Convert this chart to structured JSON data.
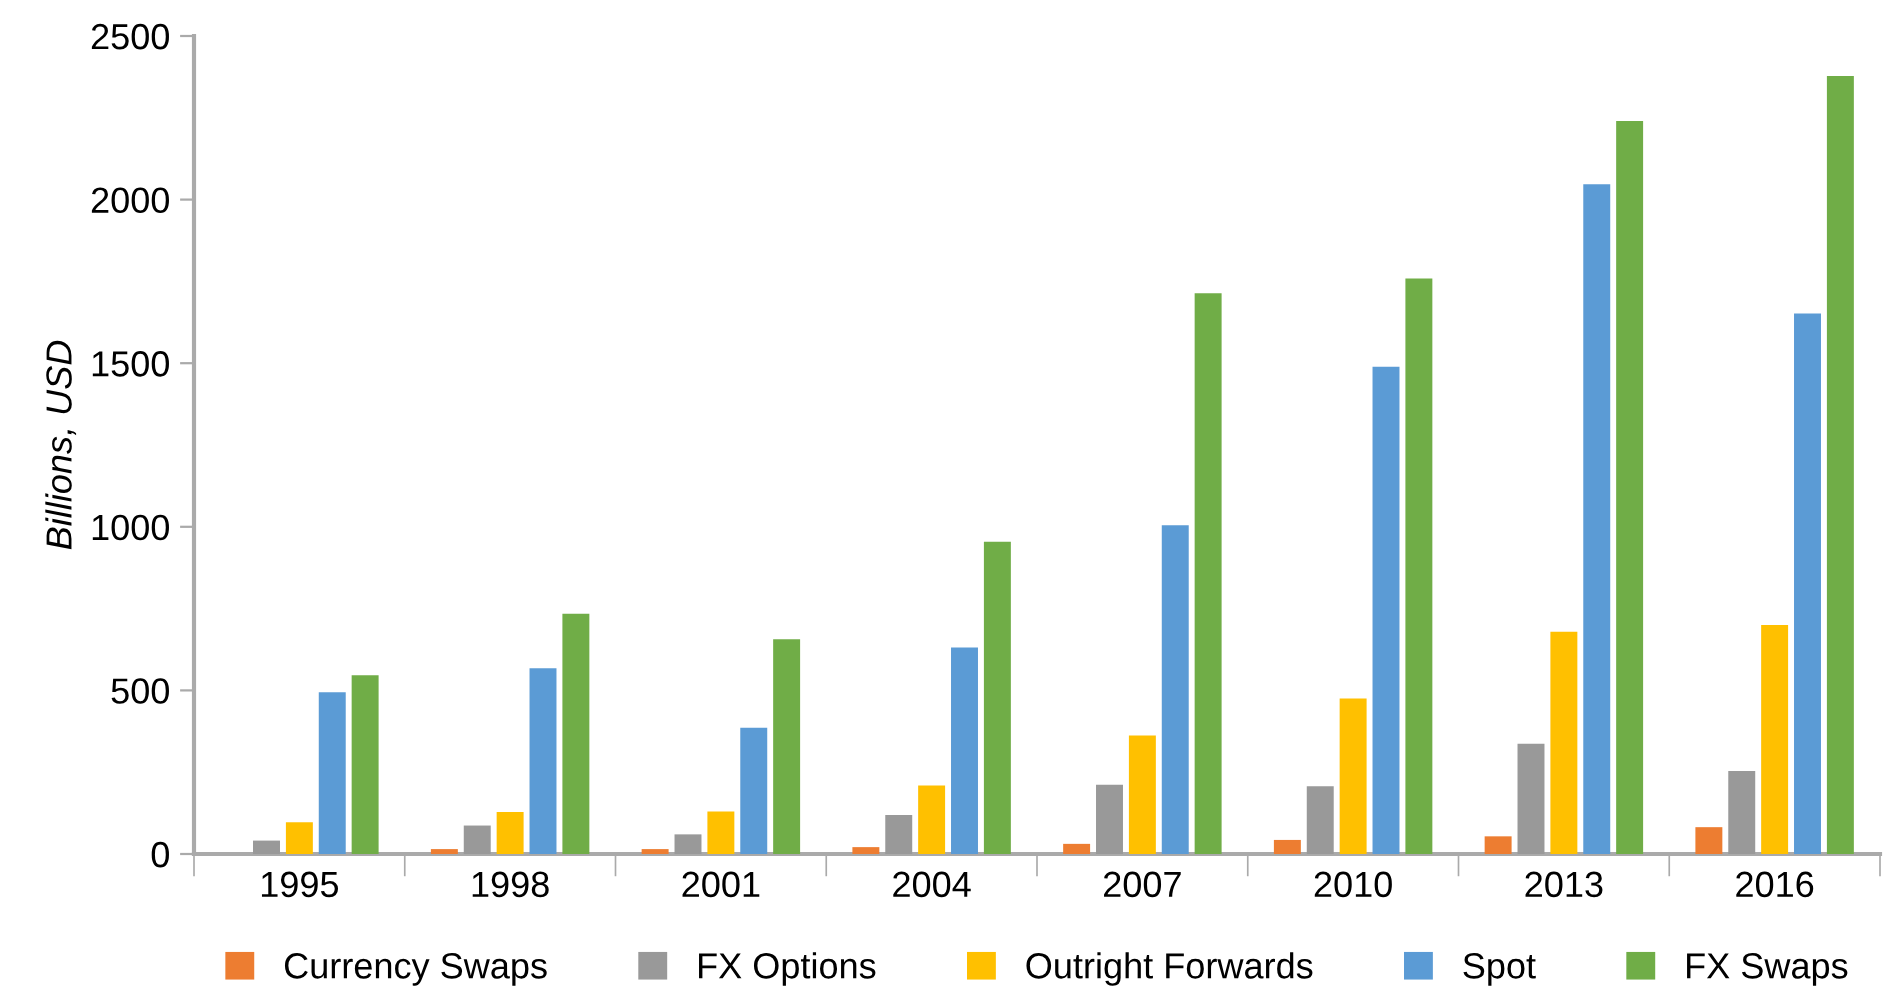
{
  "chart_data": {
    "type": "bar",
    "ylabel": "Billions, USD",
    "categories": [
      "1995",
      "1998",
      "2001",
      "2004",
      "2007",
      "2010",
      "2013",
      "2016"
    ],
    "series": [
      {
        "name": "Currency Swaps",
        "color": "#ed7d31",
        "values": [
          null,
          15,
          15,
          21,
          31,
          43,
          54,
          82
        ]
      },
      {
        "name": "FX Options",
        "color": "#999999",
        "values": [
          41,
          87,
          60,
          119,
          212,
          207,
          337,
          254
        ]
      },
      {
        "name": "Outright Forwards",
        "color": "#ffc000",
        "values": [
          97,
          128,
          130,
          209,
          362,
          475,
          679,
          700
        ]
      },
      {
        "name": "Spot",
        "color": "#5b9bd5",
        "values": [
          494,
          568,
          386,
          631,
          1005,
          1489,
          2047,
          1652
        ]
      },
      {
        "name": "FX Swaps",
        "color": "#70ad47",
        "values": [
          546,
          734,
          656,
          954,
          1714,
          1759,
          2240,
          2378
        ]
      }
    ],
    "ylim": [
      0,
      2500
    ],
    "yticks": [
      0,
      500,
      1000,
      1500,
      2000,
      2500
    ],
    "grid": false,
    "legend": "bottom"
  }
}
